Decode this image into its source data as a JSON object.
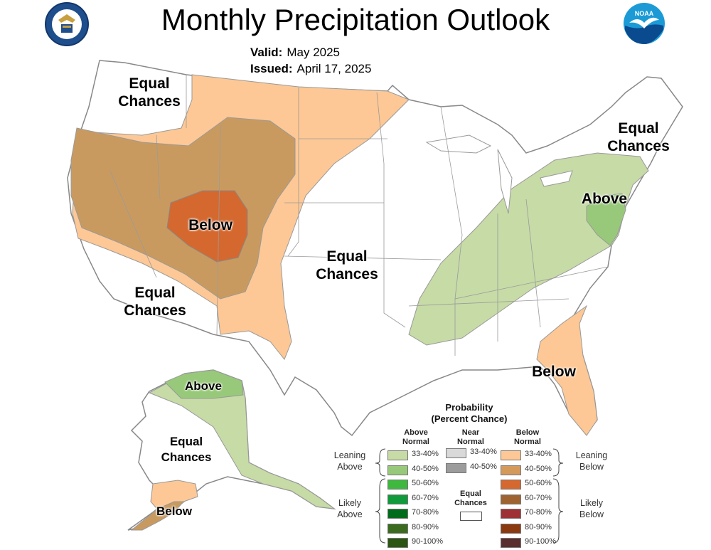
{
  "title": "Monthly Precipitation Outlook",
  "valid_label": "Valid:",
  "valid_value": "May 2025",
  "issued_label": "Issued:",
  "issued_value": "April 17, 2025",
  "logos": {
    "left": "department-of-commerce-seal",
    "right": "noaa-logo",
    "right_text": "NOAA"
  },
  "colors": {
    "land": "#ffffff",
    "leaning_above": "#c6dba6",
    "above_40_50": "#98c97a",
    "leaning_below": "#fdc895",
    "below_40_50": "#c99a5f",
    "below_50_60": "#d4682f",
    "border": "#888888"
  },
  "map_labels": {
    "nw_equal": [
      "Equal",
      "Chances"
    ],
    "ne_equal": [
      "Equal",
      "Chances"
    ],
    "sw_equal": [
      "Equal",
      "Chances"
    ],
    "central_equal": [
      "Equal",
      "Chances"
    ],
    "below_core": "Below",
    "above_east": "Above",
    "below_florida": "Below",
    "alaska_above": "Above",
    "alaska_equal": [
      "Equal",
      "Chances"
    ],
    "alaska_below": "Below"
  },
  "legend": {
    "title": [
      "Probability",
      "(Percent Chance)"
    ],
    "col_above": [
      "Above",
      "Normal"
    ],
    "col_near": [
      "Near",
      "Normal"
    ],
    "col_below": [
      "Below",
      "Normal"
    ],
    "leaning_above": [
      "Leaning",
      "Above"
    ],
    "likely_above": [
      "Likely",
      "Above"
    ],
    "leaning_below": [
      "Leaning",
      "Below"
    ],
    "likely_below": [
      "Likely",
      "Below"
    ],
    "equal_chances": [
      "Equal",
      "Chances"
    ],
    "above_levels": [
      {
        "label": "33-40%",
        "color": "#c6dba6"
      },
      {
        "label": "40-50%",
        "color": "#98c97a"
      },
      {
        "label": "50-60%",
        "color": "#3fb83f"
      },
      {
        "label": "60-70%",
        "color": "#0f9a3b"
      },
      {
        "label": "70-80%",
        "color": "#006b1b"
      },
      {
        "label": "80-90%",
        "color": "#3b6b1e"
      },
      {
        "label": "90-100%",
        "color": "#2b5512"
      }
    ],
    "near_levels": [
      {
        "label": "33-40%",
        "color": "#d9d9d9"
      },
      {
        "label": "40-50%",
        "color": "#9c9c9c"
      }
    ],
    "below_levels": [
      {
        "label": "33-40%",
        "color": "#fdc895"
      },
      {
        "label": "40-50%",
        "color": "#d49a5c"
      },
      {
        "label": "50-60%",
        "color": "#d4682f"
      },
      {
        "label": "60-70%",
        "color": "#9e6330"
      },
      {
        "label": "70-80%",
        "color": "#9e3133"
      },
      {
        "label": "80-90%",
        "color": "#8b3a10"
      },
      {
        "label": "90-100%",
        "color": "#5a2e2e"
      }
    ]
  }
}
